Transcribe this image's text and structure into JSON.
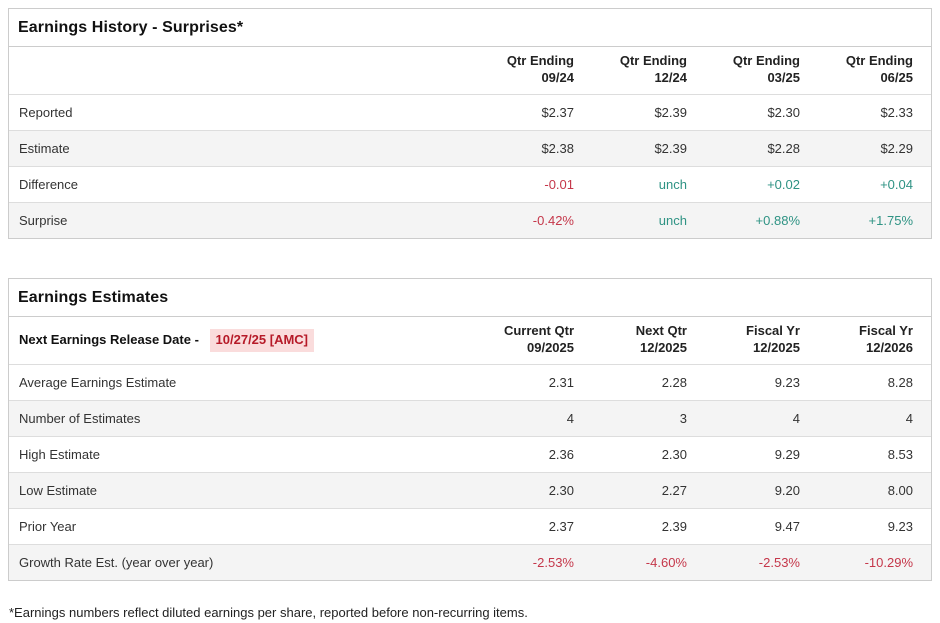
{
  "colors": {
    "positive": "#2f9384",
    "negative": "#c5374a",
    "release_date_text": "#b61a28",
    "release_date_bg": "#fadcdc",
    "row_stripe": "#f4f4f4",
    "border": "#cccccc"
  },
  "earnings_history": {
    "title": "Earnings History - Surprises*",
    "columns": [
      {
        "line1": "Qtr Ending",
        "line2": "09/24"
      },
      {
        "line1": "Qtr Ending",
        "line2": "12/24"
      },
      {
        "line1": "Qtr Ending",
        "line2": "03/25"
      },
      {
        "line1": "Qtr Ending",
        "line2": "06/25"
      }
    ],
    "rows": [
      {
        "label": "Reported",
        "values": [
          {
            "text": "$2.37",
            "tone": "neutral"
          },
          {
            "text": "$2.39",
            "tone": "neutral"
          },
          {
            "text": "$2.30",
            "tone": "neutral"
          },
          {
            "text": "$2.33",
            "tone": "neutral"
          }
        ]
      },
      {
        "label": "Estimate",
        "values": [
          {
            "text": "$2.38",
            "tone": "neutral"
          },
          {
            "text": "$2.39",
            "tone": "neutral"
          },
          {
            "text": "$2.28",
            "tone": "neutral"
          },
          {
            "text": "$2.29",
            "tone": "neutral"
          }
        ]
      },
      {
        "label": "Difference",
        "values": [
          {
            "text": "-0.01",
            "tone": "negative"
          },
          {
            "text": "unch",
            "tone": "positive"
          },
          {
            "text": "+0.02",
            "tone": "positive"
          },
          {
            "text": "+0.04",
            "tone": "positive"
          }
        ]
      },
      {
        "label": "Surprise",
        "values": [
          {
            "text": "-0.42%",
            "tone": "negative"
          },
          {
            "text": "unch",
            "tone": "positive"
          },
          {
            "text": "+0.88%",
            "tone": "positive"
          },
          {
            "text": "+1.75%",
            "tone": "positive"
          }
        ]
      }
    ]
  },
  "earnings_estimates": {
    "title": "Earnings Estimates",
    "release_label": "Next Earnings Release Date -",
    "release_date": "10/27/25 [AMC]",
    "columns": [
      {
        "line1": "Current Qtr",
        "line2": "09/2025"
      },
      {
        "line1": "Next Qtr",
        "line2": "12/2025"
      },
      {
        "line1": "Fiscal Yr",
        "line2": "12/2025"
      },
      {
        "line1": "Fiscal Yr",
        "line2": "12/2026"
      }
    ],
    "rows": [
      {
        "label": "Average Earnings Estimate",
        "values": [
          {
            "text": "2.31",
            "tone": "neutral"
          },
          {
            "text": "2.28",
            "tone": "neutral"
          },
          {
            "text": "9.23",
            "tone": "neutral"
          },
          {
            "text": "8.28",
            "tone": "neutral"
          }
        ]
      },
      {
        "label": "Number of Estimates",
        "values": [
          {
            "text": "4",
            "tone": "neutral"
          },
          {
            "text": "3",
            "tone": "neutral"
          },
          {
            "text": "4",
            "tone": "neutral"
          },
          {
            "text": "4",
            "tone": "neutral"
          }
        ]
      },
      {
        "label": "High Estimate",
        "values": [
          {
            "text": "2.36",
            "tone": "neutral"
          },
          {
            "text": "2.30",
            "tone": "neutral"
          },
          {
            "text": "9.29",
            "tone": "neutral"
          },
          {
            "text": "8.53",
            "tone": "neutral"
          }
        ]
      },
      {
        "label": "Low Estimate",
        "values": [
          {
            "text": "2.30",
            "tone": "neutral"
          },
          {
            "text": "2.27",
            "tone": "neutral"
          },
          {
            "text": "9.20",
            "tone": "neutral"
          },
          {
            "text": "8.00",
            "tone": "neutral"
          }
        ]
      },
      {
        "label": "Prior Year",
        "values": [
          {
            "text": "2.37",
            "tone": "neutral"
          },
          {
            "text": "2.39",
            "tone": "neutral"
          },
          {
            "text": "9.47",
            "tone": "neutral"
          },
          {
            "text": "9.23",
            "tone": "neutral"
          }
        ]
      },
      {
        "label": "Growth Rate Est. (year over year)",
        "values": [
          {
            "text": "-2.53%",
            "tone": "negative"
          },
          {
            "text": "-4.60%",
            "tone": "negative"
          },
          {
            "text": "-2.53%",
            "tone": "negative"
          },
          {
            "text": "-10.29%",
            "tone": "negative"
          }
        ]
      }
    ]
  },
  "footnote": "*Earnings numbers reflect diluted earnings per share, reported before non-recurring items."
}
